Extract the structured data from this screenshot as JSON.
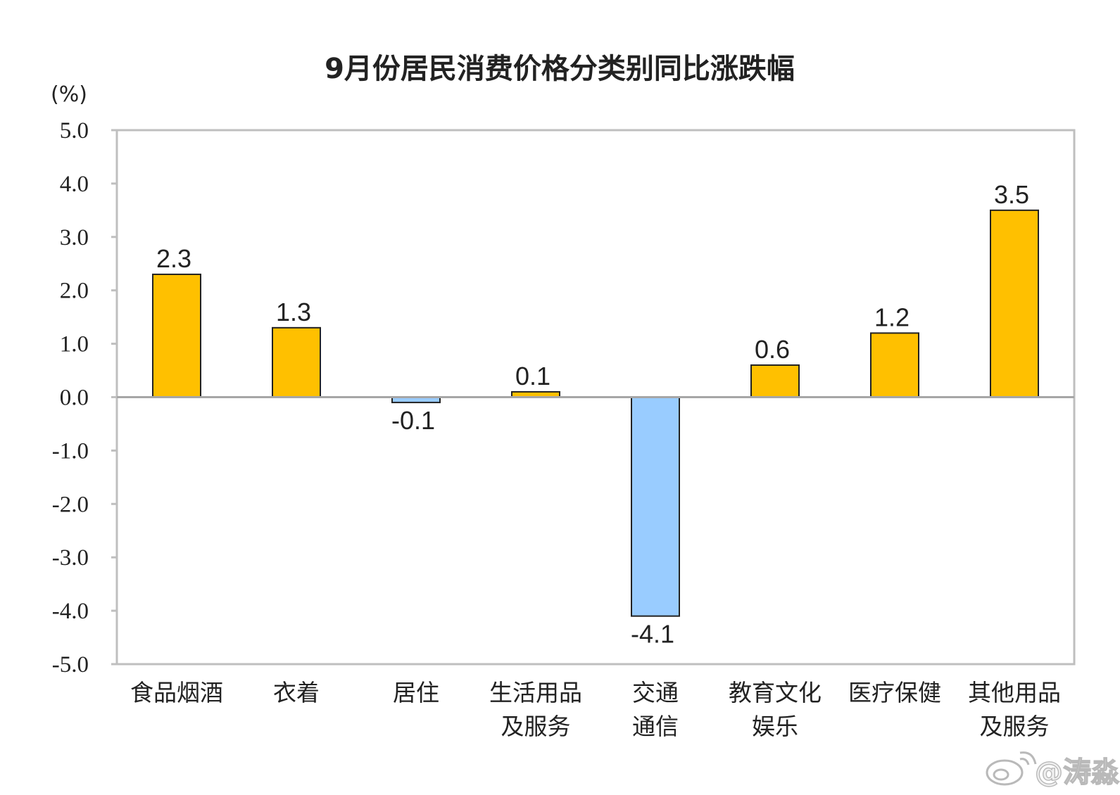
{
  "chart_data": {
    "type": "bar",
    "title": "9月份居民消费价格分类别同比涨跌幅",
    "unit_label": "(%)",
    "categories": [
      [
        "食品烟酒"
      ],
      [
        "衣着"
      ],
      [
        "居住"
      ],
      [
        "生活用品",
        "及服务"
      ],
      [
        "交通",
        "通信"
      ],
      [
        "教育文化",
        "娱乐"
      ],
      [
        "医疗保健"
      ],
      [
        "其他用品",
        "及服务"
      ]
    ],
    "values": [
      2.3,
      1.3,
      -0.1,
      0.1,
      -4.1,
      0.6,
      1.2,
      3.5
    ],
    "data_labels": [
      "2.3",
      "1.3",
      "-0.1",
      "0.1",
      "-4.1",
      "0.6",
      "1.2",
      "3.5"
    ],
    "ylim": [
      -5.0,
      5.0
    ],
    "yticks": [
      "5.0",
      "4.0",
      "3.0",
      "2.0",
      "1.0",
      "0.0",
      "-1.0",
      "-2.0",
      "-3.0",
      "-4.0",
      "-5.0"
    ],
    "grid": false,
    "colors": {
      "positive": "#FFC000",
      "negative": "#99CCFF",
      "bar_stroke": "#222222",
      "frame": "#BFBFBF",
      "zero_line": "#A6A6A6"
    }
  },
  "watermark": {
    "text": "@涛淼",
    "icon": "weibo-logo-icon"
  }
}
